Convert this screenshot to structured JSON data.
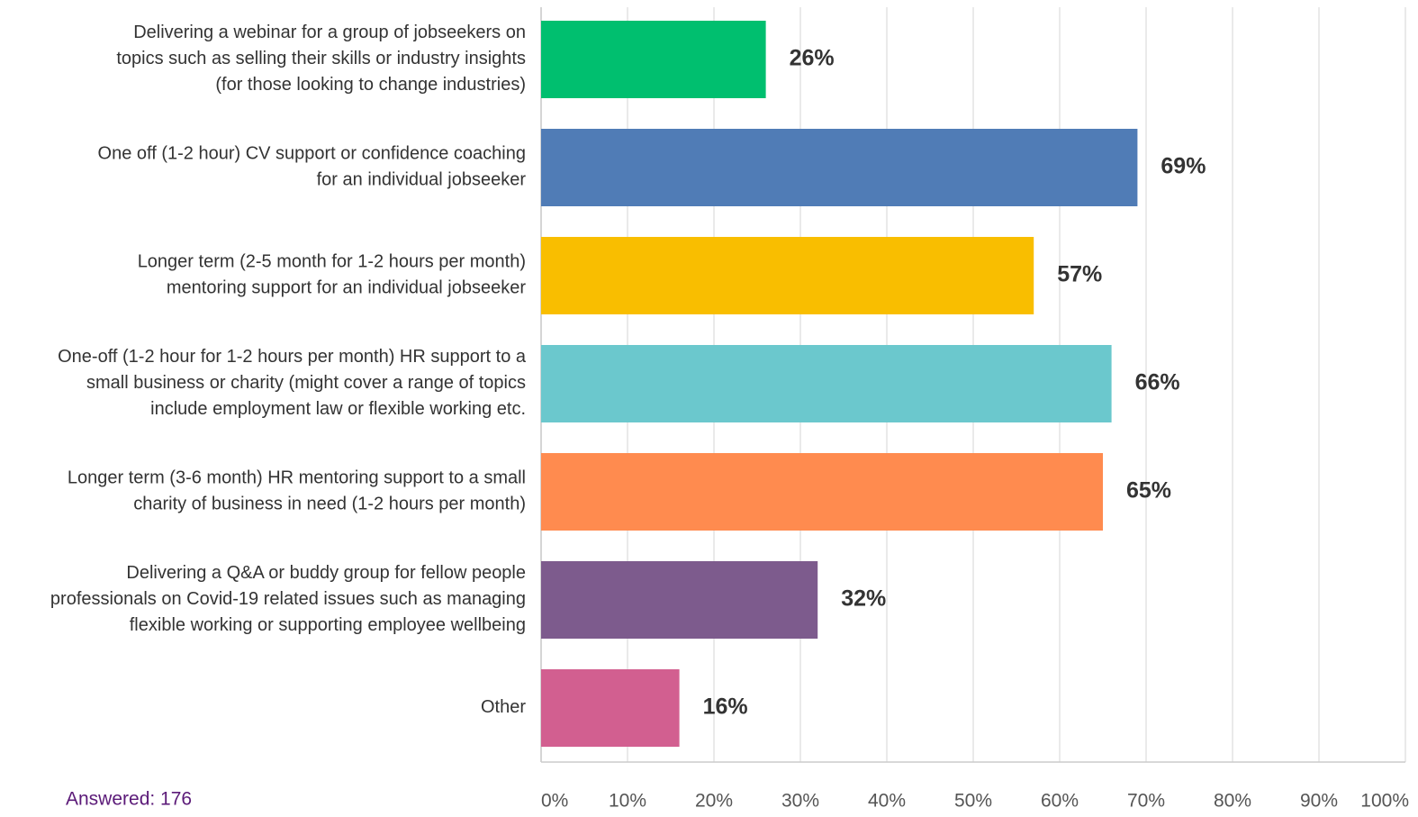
{
  "chart_data": {
    "type": "barh",
    "categories": [
      "Delivering a webinar for a group of jobseekers on\ntopics such as selling their skills or industry insights\n(for those looking to change industries)",
      "One off  (1-2 hour) CV support or confidence coaching\nfor an individual jobseeker",
      "Longer term (2-5 month for 1-2 hours per month)\nmentoring support for an individual jobseeker",
      "One-off (1-2 hour for 1-2 hours per month) HR support to a\nsmall business or charity (might cover a range of topics\ninclude employment law or flexible working etc.",
      "Longer term (3-6 month) HR mentoring support to a small\ncharity of business in need (1-2 hours per month)",
      "Delivering a Q&A or buddy group for fellow people\nprofessionals on Covid-19 related issues such as managing\nflexible working or supporting employee wellbeing",
      "Other"
    ],
    "values": [
      26,
      69,
      57,
      66,
      65,
      32,
      16
    ],
    "value_labels": [
      "26%",
      "69%",
      "57%",
      "66%",
      "65%",
      "32%",
      "16%"
    ],
    "colors": [
      "#00bf6f",
      "#507cb6",
      "#f9be00",
      "#6bc8cd",
      "#ff8b4f",
      "#7d5b8d",
      "#d25f90"
    ],
    "xlim": [
      0,
      100
    ],
    "xticks": [
      {
        "value": 0,
        "label": "0%"
      },
      {
        "value": 10,
        "label": "10%"
      },
      {
        "value": 20,
        "label": "20%"
      },
      {
        "value": 30,
        "label": "30%"
      },
      {
        "value": 40,
        "label": "40%"
      },
      {
        "value": 50,
        "label": "50%"
      },
      {
        "value": 60,
        "label": "60%"
      },
      {
        "value": 70,
        "label": "70%"
      },
      {
        "value": 80,
        "label": "80%"
      },
      {
        "value": 90,
        "label": "90%"
      },
      {
        "value": 100,
        "label": "100%"
      }
    ],
    "grid": true,
    "note": "Answered: 176"
  }
}
